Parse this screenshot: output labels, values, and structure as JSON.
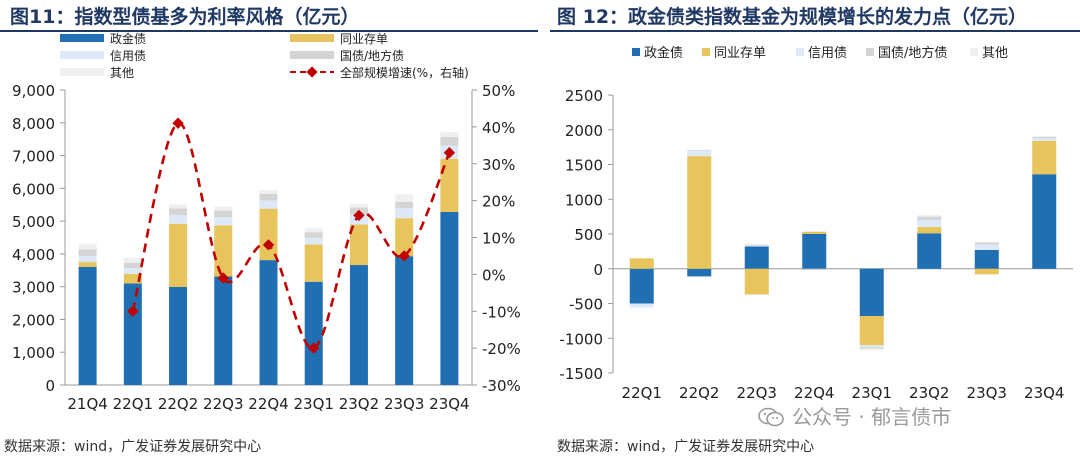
{
  "left": {
    "title": "图11：指数型债基多为利率风格（亿元）",
    "source": "数据来源：wind，广发证券发展研究中心"
  },
  "right": {
    "title": "图 12：政金债类指数基金为规模增长的发力点（亿元）",
    "source": "数据来源：wind，广发证券发展研究中心"
  },
  "watermark": {
    "text": "公众号 · 郁言债市",
    "icon": "wechat-logo-icon"
  },
  "colors": {
    "policy_bank": "#1f6fb2",
    "ncd": "#e8c45c",
    "credit": "#dde9f6",
    "gov_local": "#d4d4d4",
    "other": "#efefef",
    "line": "#c00000"
  },
  "chart_data": [
    {
      "type": "bar",
      "stacked": true,
      "secondary_axis": true,
      "categories": [
        "21Q4",
        "22Q1",
        "22Q2",
        "22Q3",
        "22Q4",
        "23Q1",
        "23Q2",
        "23Q3",
        "23Q4"
      ],
      "ylim": [
        0,
        9000
      ],
      "yticks": [
        "0",
        "1,000",
        "2,000",
        "3,000",
        "4,000",
        "5,000",
        "6,000",
        "7,000",
        "8,000",
        "9,000"
      ],
      "y2lim": [
        -30,
        50
      ],
      "y2ticks": [
        "-30%",
        "-20%",
        "-10%",
        "0%",
        "10%",
        "20%",
        "30%",
        "40%",
        "50%"
      ],
      "series": [
        {
          "name": "政金债",
          "values": [
            3600,
            3100,
            2990,
            3310,
            3810,
            3150,
            3660,
            3930,
            5280
          ]
        },
        {
          "name": "同业存单",
          "values": [
            150,
            290,
            1930,
            1560,
            1570,
            1140,
            1240,
            1160,
            1620
          ]
        },
        {
          "name": "信用债",
          "values": [
            190,
            170,
            270,
            250,
            250,
            200,
            300,
            300,
            400
          ]
        },
        {
          "name": "国债/地方债",
          "values": [
            200,
            170,
            200,
            200,
            200,
            170,
            220,
            200,
            270
          ]
        },
        {
          "name": "其他",
          "values": [
            170,
            150,
            120,
            120,
            120,
            120,
            100,
            230,
            150
          ]
        }
      ],
      "line": {
        "name": "全部规模增速(%，右轴)",
        "values": [
          null,
          -10,
          41,
          -1,
          8,
          -20,
          16,
          5,
          33
        ]
      },
      "legend_position": "top"
    },
    {
      "type": "bar",
      "stacked": true,
      "categories": [
        "22Q1",
        "22Q2",
        "22Q3",
        "22Q4",
        "23Q1",
        "23Q2",
        "23Q3",
        "23Q4"
      ],
      "ylim": [
        -1500,
        2500
      ],
      "yticks": [
        "-1500",
        "-1000",
        "-500",
        "0",
        "500",
        "1000",
        "1500",
        "2000",
        "2500"
      ],
      "series": [
        {
          "name": "政金债",
          "values": [
            -500,
            -110,
            320,
            500,
            -680,
            510,
            270,
            1360
          ]
        },
        {
          "name": "同业存单",
          "values": [
            150,
            1620,
            -370,
            30,
            -420,
            90,
            -80,
            480
          ]
        },
        {
          "name": "信用债",
          "values": [
            -60,
            80,
            20,
            10,
            -30,
            100,
            80,
            40
          ]
        },
        {
          "name": "国债/地方债",
          "values": [
            0,
            10,
            10,
            -20,
            -20,
            50,
            30,
            20
          ]
        },
        {
          "name": "其他",
          "values": [
            0,
            0,
            0,
            0,
            -20,
            20,
            0,
            0
          ]
        }
      ],
      "legend_position": "top"
    }
  ]
}
